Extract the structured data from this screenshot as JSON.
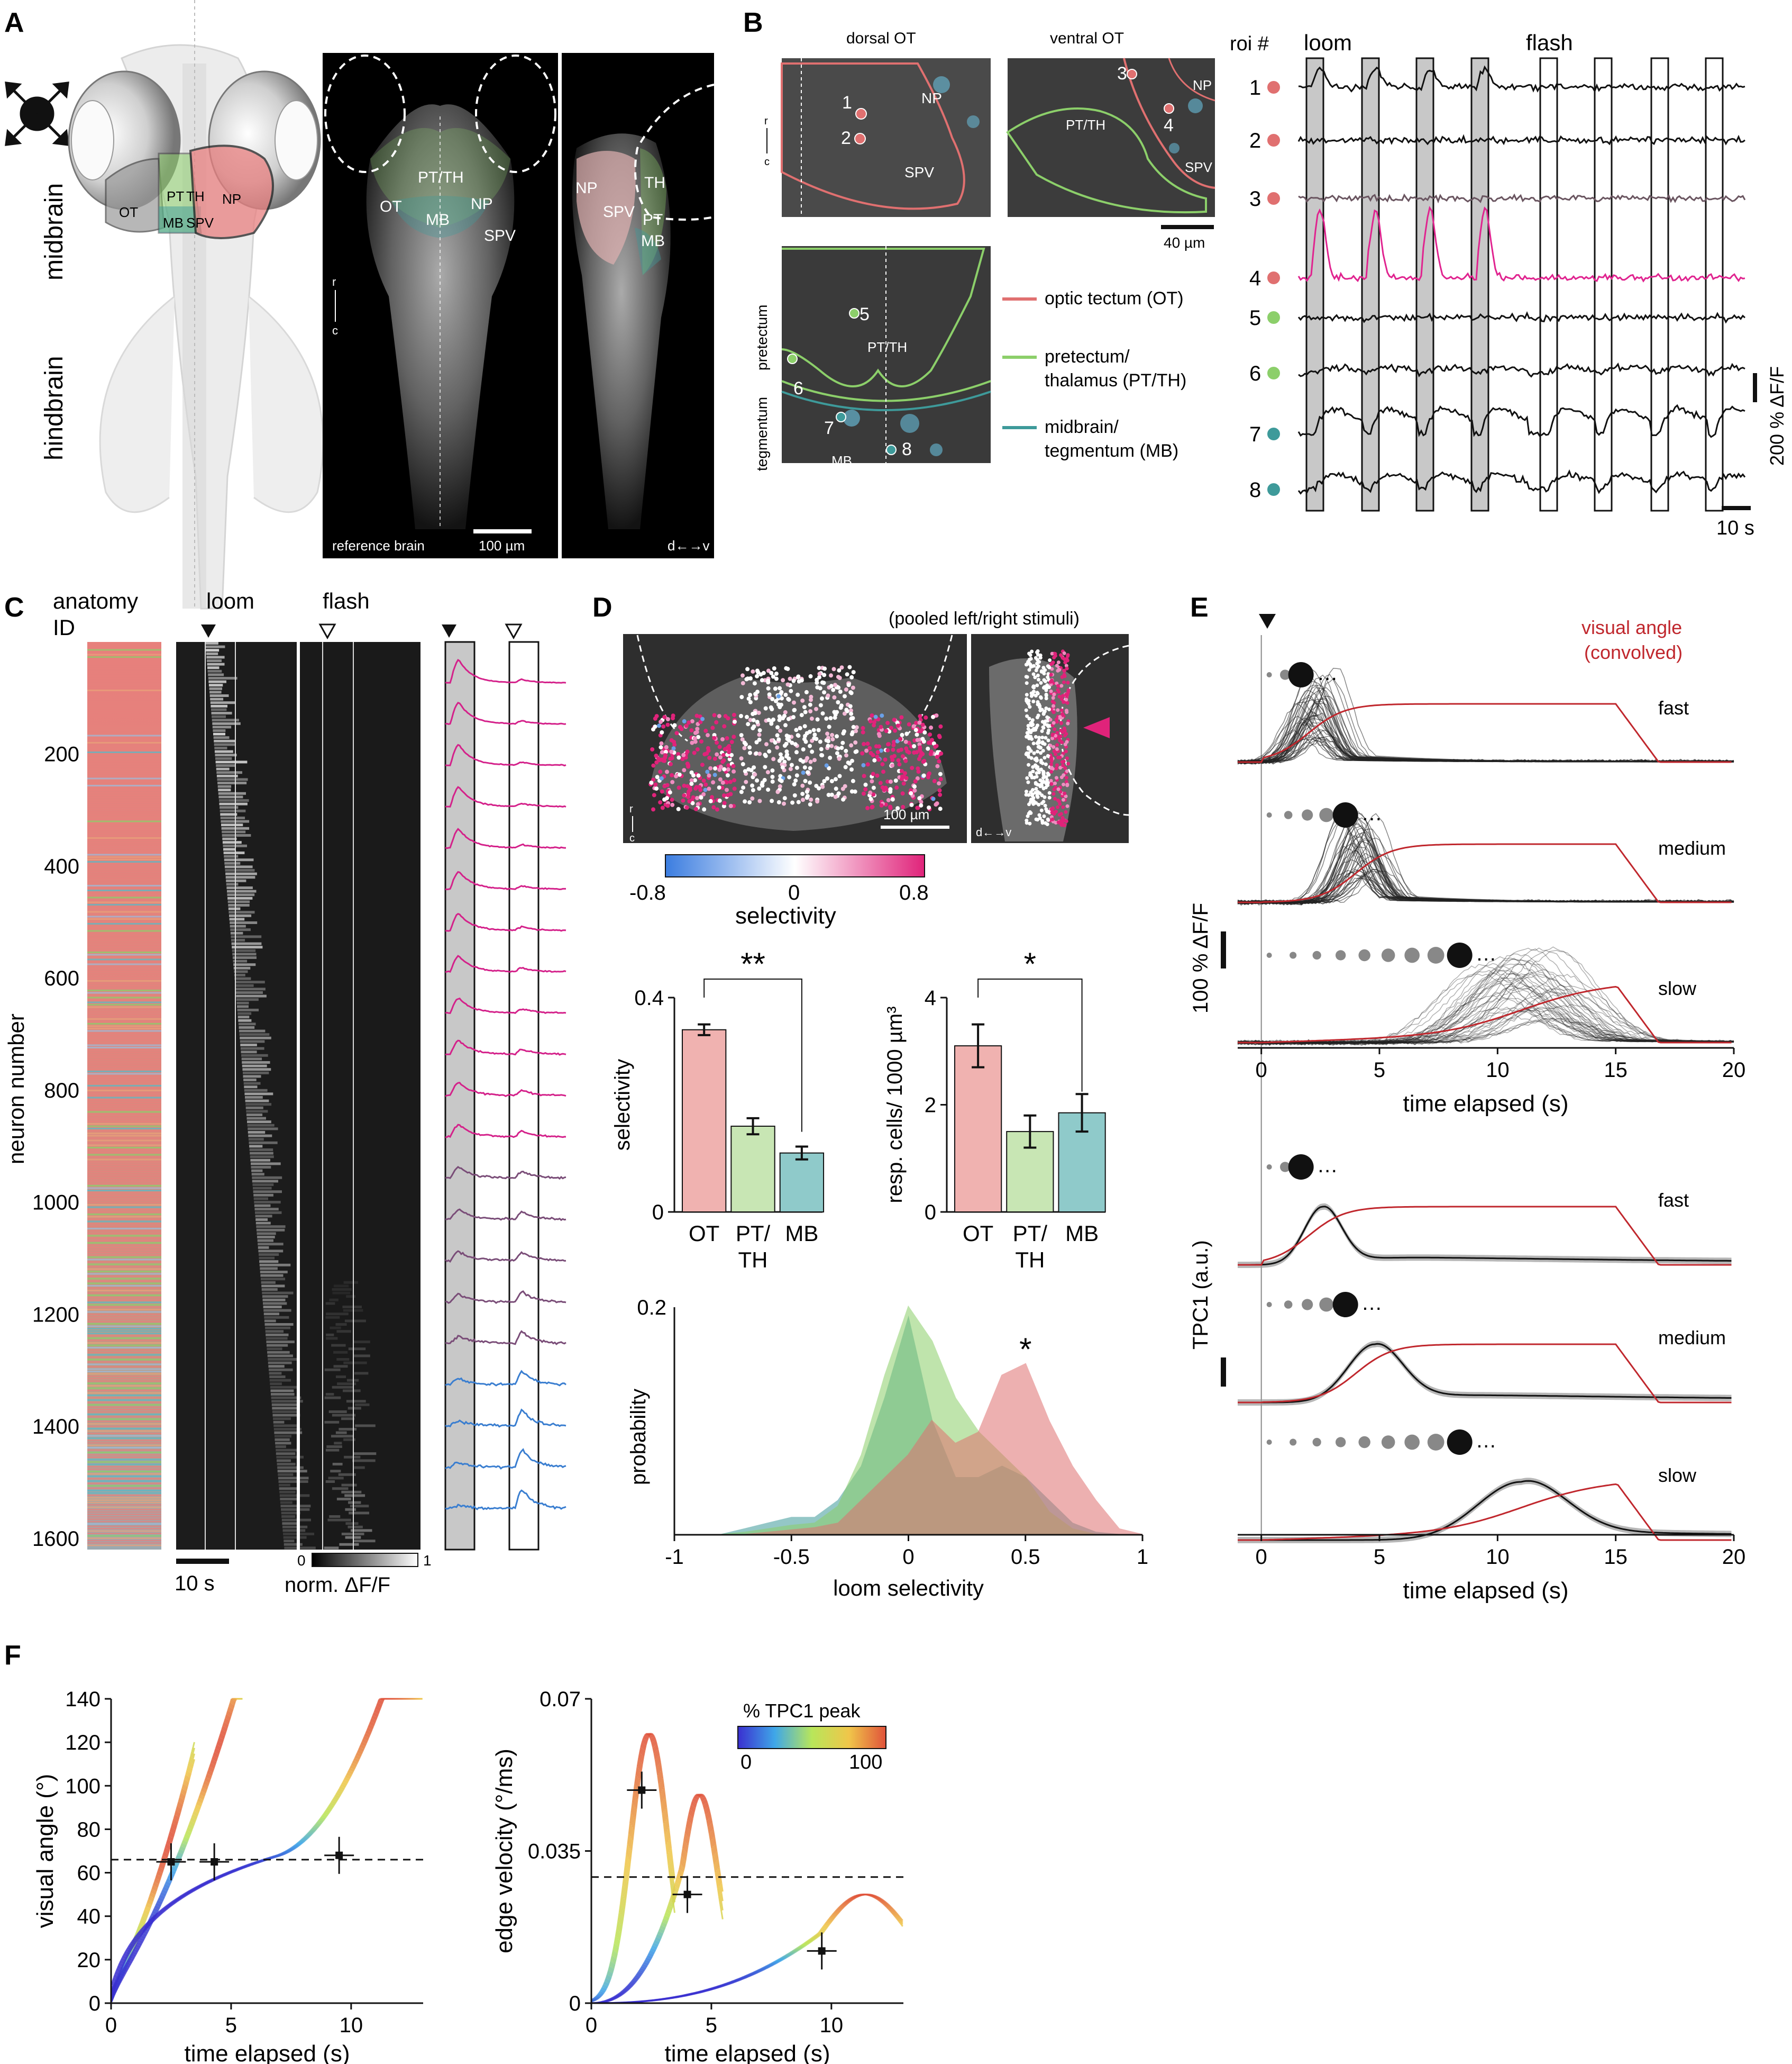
{
  "panels": [
    "A",
    "B",
    "C",
    "D",
    "E",
    "F"
  ],
  "A": {
    "regions": [
      "midbrain",
      "hindbrain"
    ],
    "labels": [
      "OT",
      "PT",
      "TH",
      "NP",
      "MB",
      "SPV"
    ],
    "axis_rc": [
      "r",
      "c"
    ],
    "axis_dv": "d←→v",
    "ref_brain": "reference brain",
    "scale": "100 µm",
    "brain_labels": [
      "PT/TH",
      "OT",
      "NP",
      "MB",
      "SPV"
    ],
    "side_labels": [
      "NP",
      "SPV",
      "TH",
      "PT",
      "MB"
    ]
  },
  "B": {
    "dorsal": "dorsal OT",
    "ventral": "ventral OT",
    "tissue_labels": [
      "NP",
      "SPV",
      "PT/TH",
      "NP",
      "SPV"
    ],
    "pretectum": "pretectum",
    "tegmentum": "tegmentum",
    "mb": "MB",
    "ptth": "PT/TH",
    "scale": "40 µm",
    "legend": [
      "optic tectum (OT)",
      "pretectum/",
      "thalamus (PT/TH)",
      "midbrain/",
      "tegmentum (MB)"
    ],
    "colors": {
      "ot": "#e07070",
      "pt": "#8ccf6a",
      "mb": "#3e9a9a",
      "loom": "#c8c8c8",
      "pink": "#e0238f"
    },
    "roi_header": "roi #",
    "loom": "loom",
    "flash": "flash",
    "rois": [
      "1",
      "2",
      "3",
      "4",
      "5",
      "6",
      "7",
      "8"
    ],
    "scale_y": "200 % ΔF/F",
    "scale_x": "10 s"
  },
  "C": {
    "anatomy": "anatomy",
    "id": "ID",
    "loom": "loom",
    "flash": "flash",
    "ylabel": "neuron number",
    "yticks": [
      "200",
      "400",
      "600",
      "800",
      "1000",
      "1200",
      "1400",
      "1600"
    ],
    "scale": "10 s",
    "cbar": [
      "0",
      "1"
    ],
    "cbar_label": "norm. ΔF/F"
  },
  "D": {
    "pooled": "(pooled left/right stimuli)",
    "axis_rc": [
      "r",
      "c"
    ],
    "scale": "100 µm",
    "axis_dv": "d←→v",
    "cbar_ticks": [
      "-0.8",
      "0",
      "0.8"
    ],
    "cbar_label": "selectivity",
    "bar1": {
      "ylabel": "selectivity",
      "yticks": [
        "0",
        "0.4"
      ],
      "sig": "**"
    },
    "bar2": {
      "ylabel": "resp. cells/ 1000 µm³",
      "yticks": [
        "0",
        "2",
        "4"
      ],
      "sig": "*"
    },
    "cats": [
      "OT",
      "PT/",
      "TH",
      "MB"
    ],
    "hist": {
      "ylabel": "probability",
      "xlabel": "loom selectivity",
      "xticks": [
        "-1",
        "-0.5",
        "0",
        "0.5",
        "1"
      ],
      "yticks": [
        "0.2"
      ],
      "sig": "*"
    }
  },
  "E": {
    "vis_angle": "visual angle",
    "convolved": "(convolved)",
    "speeds": [
      "fast",
      "medium",
      "slow"
    ],
    "ylabel_top": "100 % ΔF/F",
    "ylabel_bot": "TPC1 (a.u.)",
    "xticks": [
      "0",
      "5",
      "10",
      "15",
      "20"
    ],
    "xlabel": "time elapsed (s)"
  },
  "F": {
    "left": {
      "ylabel": "visual angle (°)",
      "xlabel": "time elapsed (s)",
      "xticks": [
        "0",
        "5",
        "10"
      ],
      "yticks": [
        "0",
        "20",
        "40",
        "60",
        "80",
        "100",
        "120",
        "140"
      ]
    },
    "right": {
      "ylabel": "edge velocity (°/ms)",
      "xlabel": "time elapsed (s)",
      "xticks": [
        "0",
        "5",
        "10"
      ],
      "yticks": [
        "0",
        "0.035",
        "0.07"
      ]
    },
    "cbar_title": "% TPC1 peak",
    "cbar_ticks": [
      "0",
      "100"
    ]
  },
  "chart_data": [
    {
      "type": "bar",
      "panel": "D-selectivity",
      "categories": [
        "OT",
        "PT/TH",
        "MB"
      ],
      "values": [
        0.34,
        0.16,
        0.11
      ],
      "errors": [
        0.01,
        0.015,
        0.012
      ],
      "ylim": [
        0,
        0.4
      ],
      "ylabel": "selectivity"
    },
    {
      "type": "bar",
      "panel": "D-density",
      "categories": [
        "OT",
        "PT/TH",
        "MB"
      ],
      "values": [
        3.1,
        1.5,
        1.85
      ],
      "errors": [
        0.4,
        0.3,
        0.35
      ],
      "ylim": [
        0,
        4
      ],
      "ylabel": "resp. cells/ 1000 µm³"
    },
    {
      "type": "area",
      "panel": "D-histogram",
      "x": [
        -1,
        -0.9,
        -0.8,
        -0.7,
        -0.6,
        -0.5,
        -0.4,
        -0.3,
        -0.2,
        -0.1,
        0,
        0.1,
        0.2,
        0.3,
        0.4,
        0.5,
        0.6,
        0.7,
        0.8,
        0.9,
        1
      ],
      "series": [
        {
          "color": "#3e9a9a",
          "values": [
            0,
            0,
            0,
            0.005,
            0.01,
            0.015,
            0.015,
            0.03,
            0.06,
            0.12,
            0.19,
            0.1,
            0.05,
            0.05,
            0.06,
            0.05,
            0.03,
            0.01,
            0.002,
            0,
            0
          ]
        },
        {
          "color": "#8ccf6a",
          "values": [
            0,
            0,
            0,
            0.002,
            0.005,
            0.008,
            0.01,
            0.025,
            0.07,
            0.14,
            0.2,
            0.17,
            0.12,
            0.09,
            0.07,
            0.05,
            0.02,
            0.005,
            0,
            0,
            0
          ]
        },
        {
          "color": "#e07070",
          "values": [
            0,
            0,
            0,
            0,
            0.002,
            0.004,
            0.006,
            0.01,
            0.03,
            0.05,
            0.07,
            0.1,
            0.08,
            0.09,
            0.14,
            0.15,
            0.1,
            0.06,
            0.03,
            0.005,
            0
          ]
        }
      ],
      "xlim": [
        -1,
        1
      ],
      "ylim": [
        0,
        0.2
      ],
      "xlabel": "loom selectivity",
      "ylabel": "probability"
    },
    {
      "type": "line",
      "panel": "F-left",
      "xlim": [
        0,
        13
      ],
      "ylim": [
        0,
        140
      ],
      "xlabel": "time elapsed (s)",
      "ylabel": "visual angle (°)",
      "points": [
        {
          "x": 2.5,
          "y": 65
        },
        {
          "x": 4.3,
          "y": 65
        },
        {
          "x": 9.5,
          "y": 68
        }
      ],
      "threshold": 66
    },
    {
      "type": "line",
      "panel": "F-right",
      "xlim": [
        0,
        13
      ],
      "ylim": [
        0,
        0.07
      ],
      "xlabel": "time elapsed (s)",
      "ylabel": "edge velocity (°/ms)",
      "points": [
        {
          "x": 2.1,
          "y": 0.049
        },
        {
          "x": 4,
          "y": 0.025
        },
        {
          "x": 9.6,
          "y": 0.012
        }
      ],
      "threshold": 0.029
    }
  ]
}
